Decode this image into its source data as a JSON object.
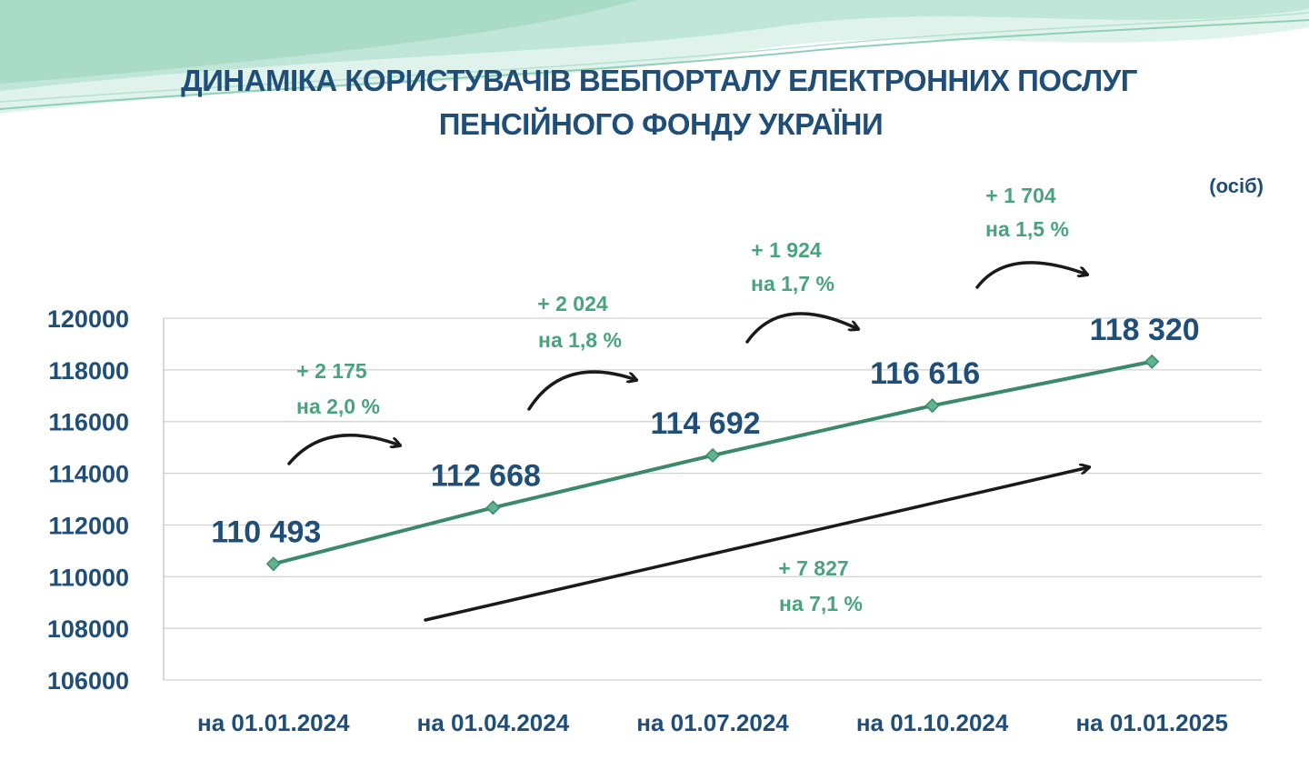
{
  "title_lines": [
    "ДИНАМІКА КОРИСТУВАЧІВ ВЕБПОРТАЛУ ЕЛЕКТРОННИХ ПОСЛУГ",
    "ПЕНСІЙНОГО ФОНДУ УКРАЇНИ"
  ],
  "unit_label": "(осіб)",
  "colors": {
    "title": "#1f4e79",
    "series_line": "#3a8a6a",
    "marker": "#5fb38f",
    "annotation": "#4aa37f",
    "decoration": "#9fd6c0"
  },
  "chart_data": {
    "type": "line",
    "categories": [
      "на 01.01.2024",
      "на 01.04.2024",
      "на 01.07.2024",
      "на 01.10.2024",
      "на 01.01.2025"
    ],
    "values": [
      110493,
      112668,
      114692,
      116616,
      118320
    ],
    "data_labels": [
      "110 493",
      "112 668",
      "114 692",
      "116 616",
      "118 320"
    ],
    "ylim": [
      106000,
      120000
    ],
    "yticks": [
      106000,
      108000,
      110000,
      112000,
      114000,
      116000,
      118000,
      120000
    ],
    "ytick_labels": [
      "106000",
      "108000",
      "110000",
      "112000",
      "114000",
      "116000",
      "118000",
      "120000"
    ],
    "grid": true,
    "legend": "none",
    "annotations": [
      {
        "line1": "+ 2 175",
        "line2": "на 2,0 %"
      },
      {
        "line1": "+ 2 024",
        "line2": "на 1,8 %"
      },
      {
        "line1": "+ 1 924",
        "line2": "на 1,7 %"
      },
      {
        "line1": "+ 1 704",
        "line2": "на 1,5 %"
      }
    ],
    "total_annotation": {
      "line1": "+ 7 827",
      "line2": "на 7,1 %"
    }
  }
}
